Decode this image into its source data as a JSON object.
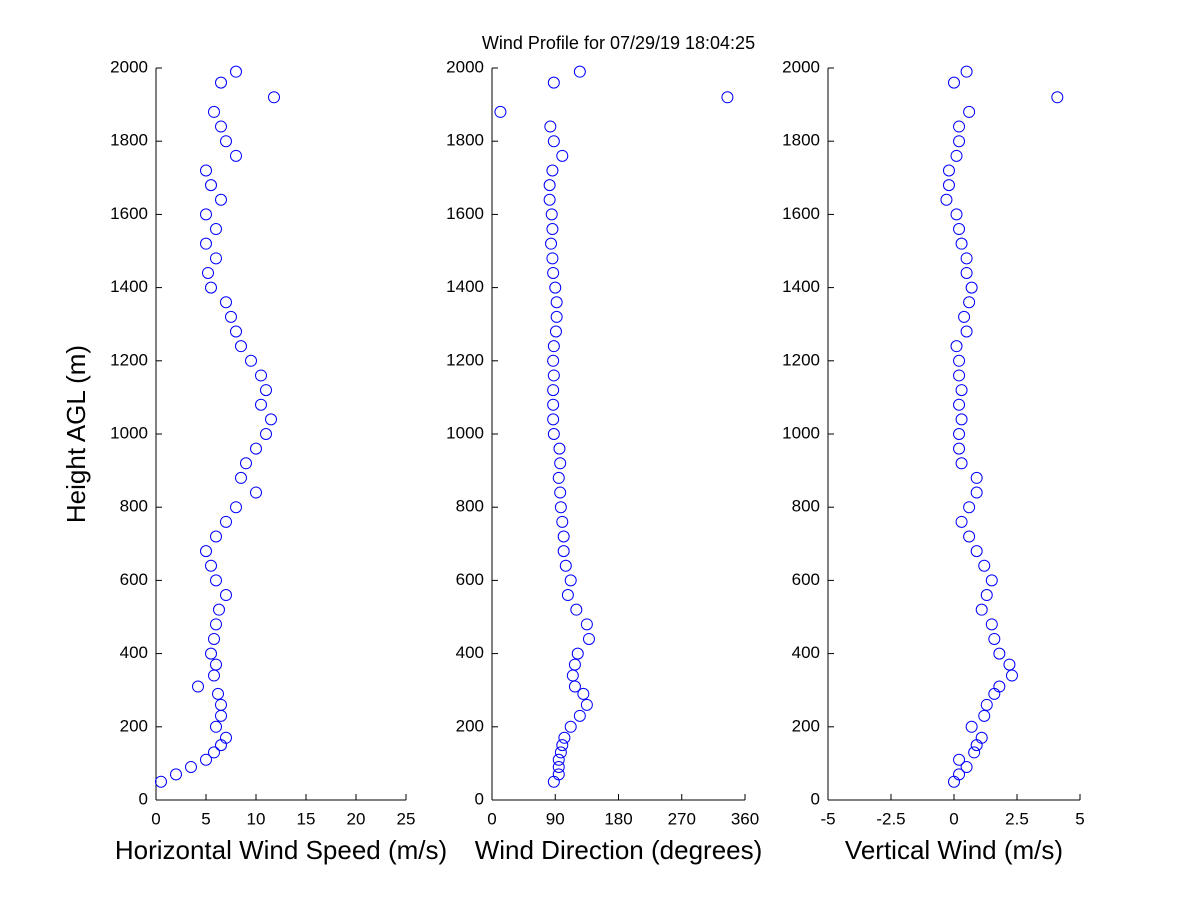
{
  "chart_data": [
    {
      "type": "scatter",
      "xlabel": "Horizontal Wind Speed (m/s)",
      "ylabel": "Height AGL (m)",
      "color": "#0000ff",
      "xlim": [
        0,
        25
      ],
      "xticks": [
        0,
        5,
        10,
        15,
        20,
        25
      ],
      "ylim": [
        0,
        2000
      ],
      "yticks": [
        0,
        200,
        400,
        600,
        800,
        1000,
        1200,
        1400,
        1600,
        1800,
        2000
      ],
      "x": [
        0.5,
        2,
        3.5,
        5,
        5.8,
        6.5,
        7,
        6,
        6.5,
        6.5,
        6.2,
        4.2,
        5.8,
        6,
        5.5,
        5.8,
        6,
        6.3,
        7,
        6,
        5.5,
        5,
        6,
        7,
        8,
        10,
        8.5,
        9,
        10,
        11,
        11.5,
        10.5,
        11,
        10.5,
        9.5,
        8.5,
        8,
        7.5,
        7,
        5.5,
        5.2,
        6,
        5,
        6,
        5,
        6.5,
        5.5,
        5,
        8,
        7,
        6.5,
        5.8,
        11.8,
        6.5,
        8
      ],
      "y": [
        50,
        70,
        90,
        110,
        130,
        150,
        170,
        200,
        230,
        260,
        290,
        310,
        340,
        370,
        400,
        440,
        480,
        520,
        560,
        600,
        640,
        680,
        720,
        760,
        800,
        840,
        880,
        920,
        960,
        1000,
        1040,
        1080,
        1120,
        1160,
        1200,
        1240,
        1280,
        1320,
        1360,
        1400,
        1440,
        1480,
        1520,
        1560,
        1600,
        1640,
        1680,
        1720,
        1760,
        1800,
        1840,
        1880,
        1920,
        1960,
        1990
      ]
    },
    {
      "type": "scatter",
      "title": "Wind Profile for  07/29/19 18:04:25",
      "xlabel": "Wind Direction (degrees)",
      "color": "#0000ff",
      "xlim": [
        0,
        360
      ],
      "xticks": [
        0,
        90,
        180,
        270,
        360
      ],
      "ylim": [
        0,
        2000
      ],
      "yticks": [
        0,
        200,
        400,
        600,
        800,
        1000,
        1200,
        1400,
        1600,
        1800,
        2000
      ],
      "x": [
        88,
        95,
        95,
        95,
        98,
        100,
        103,
        112,
        125,
        135,
        130,
        118,
        115,
        118,
        122,
        138,
        135,
        120,
        108,
        112,
        105,
        102,
        102,
        100,
        98,
        97,
        95,
        97,
        96,
        88,
        87,
        87,
        87,
        88,
        87,
        88,
        91,
        92,
        92,
        90,
        87,
        86,
        84,
        86,
        85,
        82,
        82,
        86,
        100,
        88,
        83,
        12,
        335,
        88,
        125
      ],
      "y": [
        50,
        70,
        90,
        110,
        130,
        150,
        170,
        200,
        230,
        260,
        290,
        310,
        340,
        370,
        400,
        440,
        480,
        520,
        560,
        600,
        640,
        680,
        720,
        760,
        800,
        840,
        880,
        920,
        960,
        1000,
        1040,
        1080,
        1120,
        1160,
        1200,
        1240,
        1280,
        1320,
        1360,
        1400,
        1440,
        1480,
        1520,
        1560,
        1600,
        1640,
        1680,
        1720,
        1760,
        1800,
        1840,
        1880,
        1920,
        1960,
        1990
      ]
    },
    {
      "type": "scatter",
      "xlabel": "Vertical Wind (m/s)",
      "color": "#0000ff",
      "xlim": [
        -5,
        5
      ],
      "xticks": [
        -5,
        -2.5,
        0,
        2.5,
        5
      ],
      "ylim": [
        0,
        2000
      ],
      "yticks": [
        0,
        200,
        400,
        600,
        800,
        1000,
        1200,
        1400,
        1600,
        1800,
        2000
      ],
      "x": [
        0,
        0.2,
        0.5,
        0.2,
        0.8,
        0.9,
        1.1,
        0.7,
        1.2,
        1.3,
        1.6,
        1.8,
        2.3,
        2.2,
        1.8,
        1.6,
        1.5,
        1.1,
        1.3,
        1.5,
        1.2,
        0.9,
        0.6,
        0.3,
        0.6,
        0.9,
        0.9,
        0.3,
        0.2,
        0.2,
        0.3,
        0.2,
        0.3,
        0.2,
        0.2,
        0.1,
        0.5,
        0.4,
        0.6,
        0.7,
        0.5,
        0.5,
        0.3,
        0.2,
        0.1,
        -0.3,
        -0.2,
        -0.2,
        0.1,
        0.2,
        0.2,
        0.6,
        4.1,
        0,
        0.5
      ],
      "y": [
        50,
        70,
        90,
        110,
        130,
        150,
        170,
        200,
        230,
        260,
        290,
        310,
        340,
        370,
        400,
        440,
        480,
        520,
        560,
        600,
        640,
        680,
        720,
        760,
        800,
        840,
        880,
        920,
        960,
        1000,
        1040,
        1080,
        1120,
        1160,
        1200,
        1240,
        1280,
        1320,
        1360,
        1400,
        1440,
        1480,
        1520,
        1560,
        1600,
        1640,
        1680,
        1720,
        1760,
        1800,
        1840,
        1880,
        1920,
        1960,
        1990
      ]
    }
  ]
}
